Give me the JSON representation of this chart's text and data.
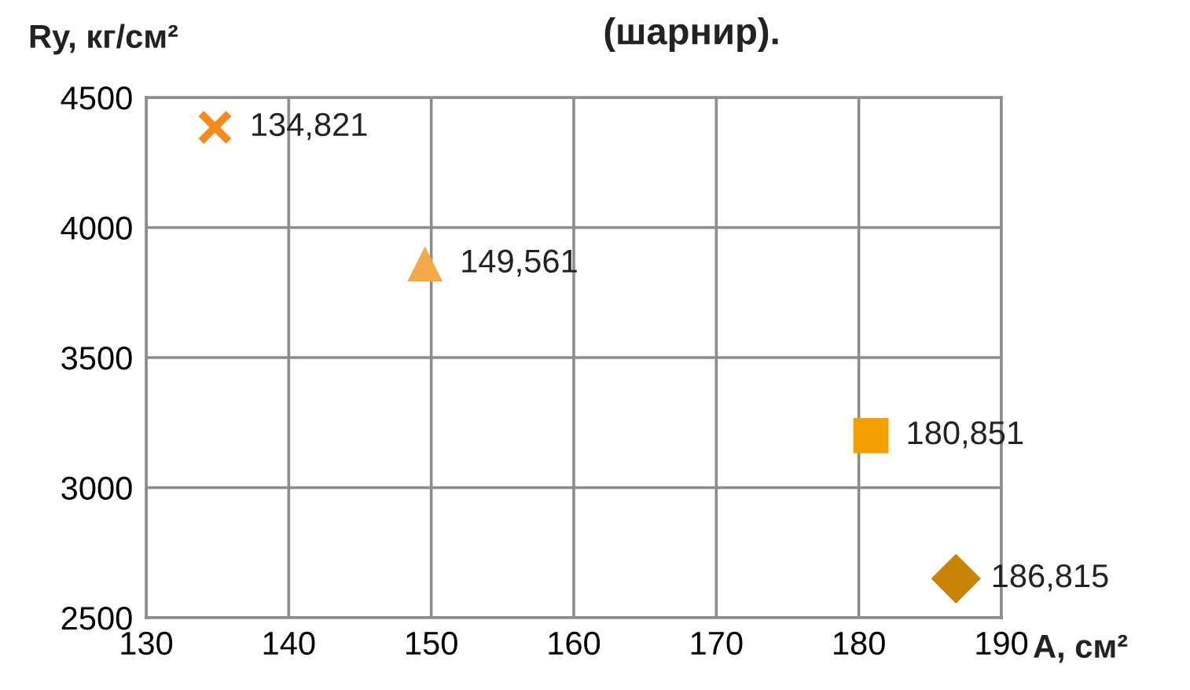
{
  "chart_data": {
    "type": "scatter",
    "title": "(шарнир).",
    "xlabel": "A, см²",
    "ylabel": "Ry, кг/см²",
    "xlim": [
      130,
      190
    ],
    "xticks": [
      130,
      140,
      150,
      160,
      170,
      180,
      190
    ],
    "ylim": [
      2500,
      4500
    ],
    "yticks": [
      2500,
      3000,
      3500,
      4000,
      4500
    ],
    "grid": true,
    "legend": false,
    "series": [
      {
        "x": [
          134.821
        ],
        "values": [
          4385
        ],
        "color": "#f68a1e",
        "marker": "cross"
      },
      {
        "x": [
          149.561
        ],
        "values": [
          3860
        ],
        "color": "#f0a848",
        "marker": "triangle"
      },
      {
        "x": [
          180.851
        ],
        "values": [
          3200
        ],
        "color": "#f2a000",
        "marker": "square"
      },
      {
        "x": [
          186.815
        ],
        "values": [
          2650
        ],
        "color": "#c98304",
        "marker": "diamond"
      }
    ],
    "annotations": [
      {
        "text": "134,821",
        "x": 134.821,
        "y": 4385
      },
      {
        "text": "149,561",
        "x": 149.561,
        "y": 3860
      },
      {
        "text": "180,851",
        "x": 180.851,
        "y": 3200
      },
      {
        "text": "186,815",
        "x": 186.815,
        "y": 2650
      }
    ]
  }
}
